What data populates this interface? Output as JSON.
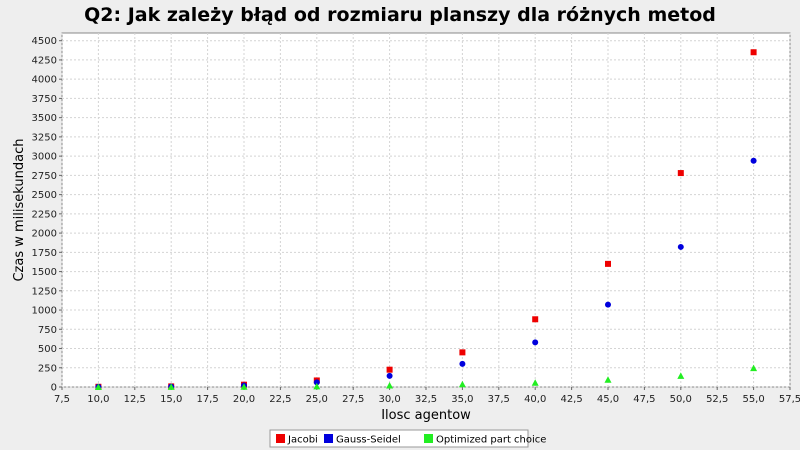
{
  "chart_data": {
    "type": "scatter",
    "title": "Q2: Jak zależy błąd od rozmiaru planszy dla różnych metod",
    "xlabel": "Ilosc agentow",
    "ylabel": "Czas w milisekundach",
    "xlim": [
      7.5,
      57.5
    ],
    "ylim": [
      0,
      4600
    ],
    "x_ticks": [
      "7,5",
      "10,0",
      "12,5",
      "15,0",
      "17,5",
      "20,0",
      "22,5",
      "25,0",
      "27,5",
      "30,0",
      "32,5",
      "35,0",
      "37,5",
      "40,0",
      "42,5",
      "45,0",
      "47,5",
      "50,0",
      "52,5",
      "55,0",
      "57,5"
    ],
    "y_ticks": [
      "0",
      "250",
      "500",
      "750",
      "1000",
      "1250",
      "1500",
      "1750",
      "2000",
      "2250",
      "2500",
      "2750",
      "3000",
      "3250",
      "3500",
      "3750",
      "4000",
      "4250",
      "4500"
    ],
    "grid": true,
    "legend_position": "bottom-center",
    "x": [
      10,
      15,
      20,
      25,
      30,
      35,
      40,
      45,
      50,
      55
    ],
    "series": [
      {
        "name": "Jacobi",
        "marker": "square",
        "color": "#ee0000",
        "values": [
          3,
          8,
          30,
          85,
          225,
          450,
          880,
          1600,
          2780,
          4350
        ]
      },
      {
        "name": "Gauss-Seidel",
        "marker": "circle",
        "color": "#0000dd",
        "values": [
          2,
          5,
          20,
          60,
          145,
          300,
          580,
          1070,
          1820,
          2940
        ]
      },
      {
        "name": "Optimized part choice",
        "marker": "triangle",
        "color": "#22ee22",
        "values": [
          0,
          1,
          3,
          8,
          20,
          35,
          55,
          95,
          145,
          245
        ]
      }
    ]
  }
}
